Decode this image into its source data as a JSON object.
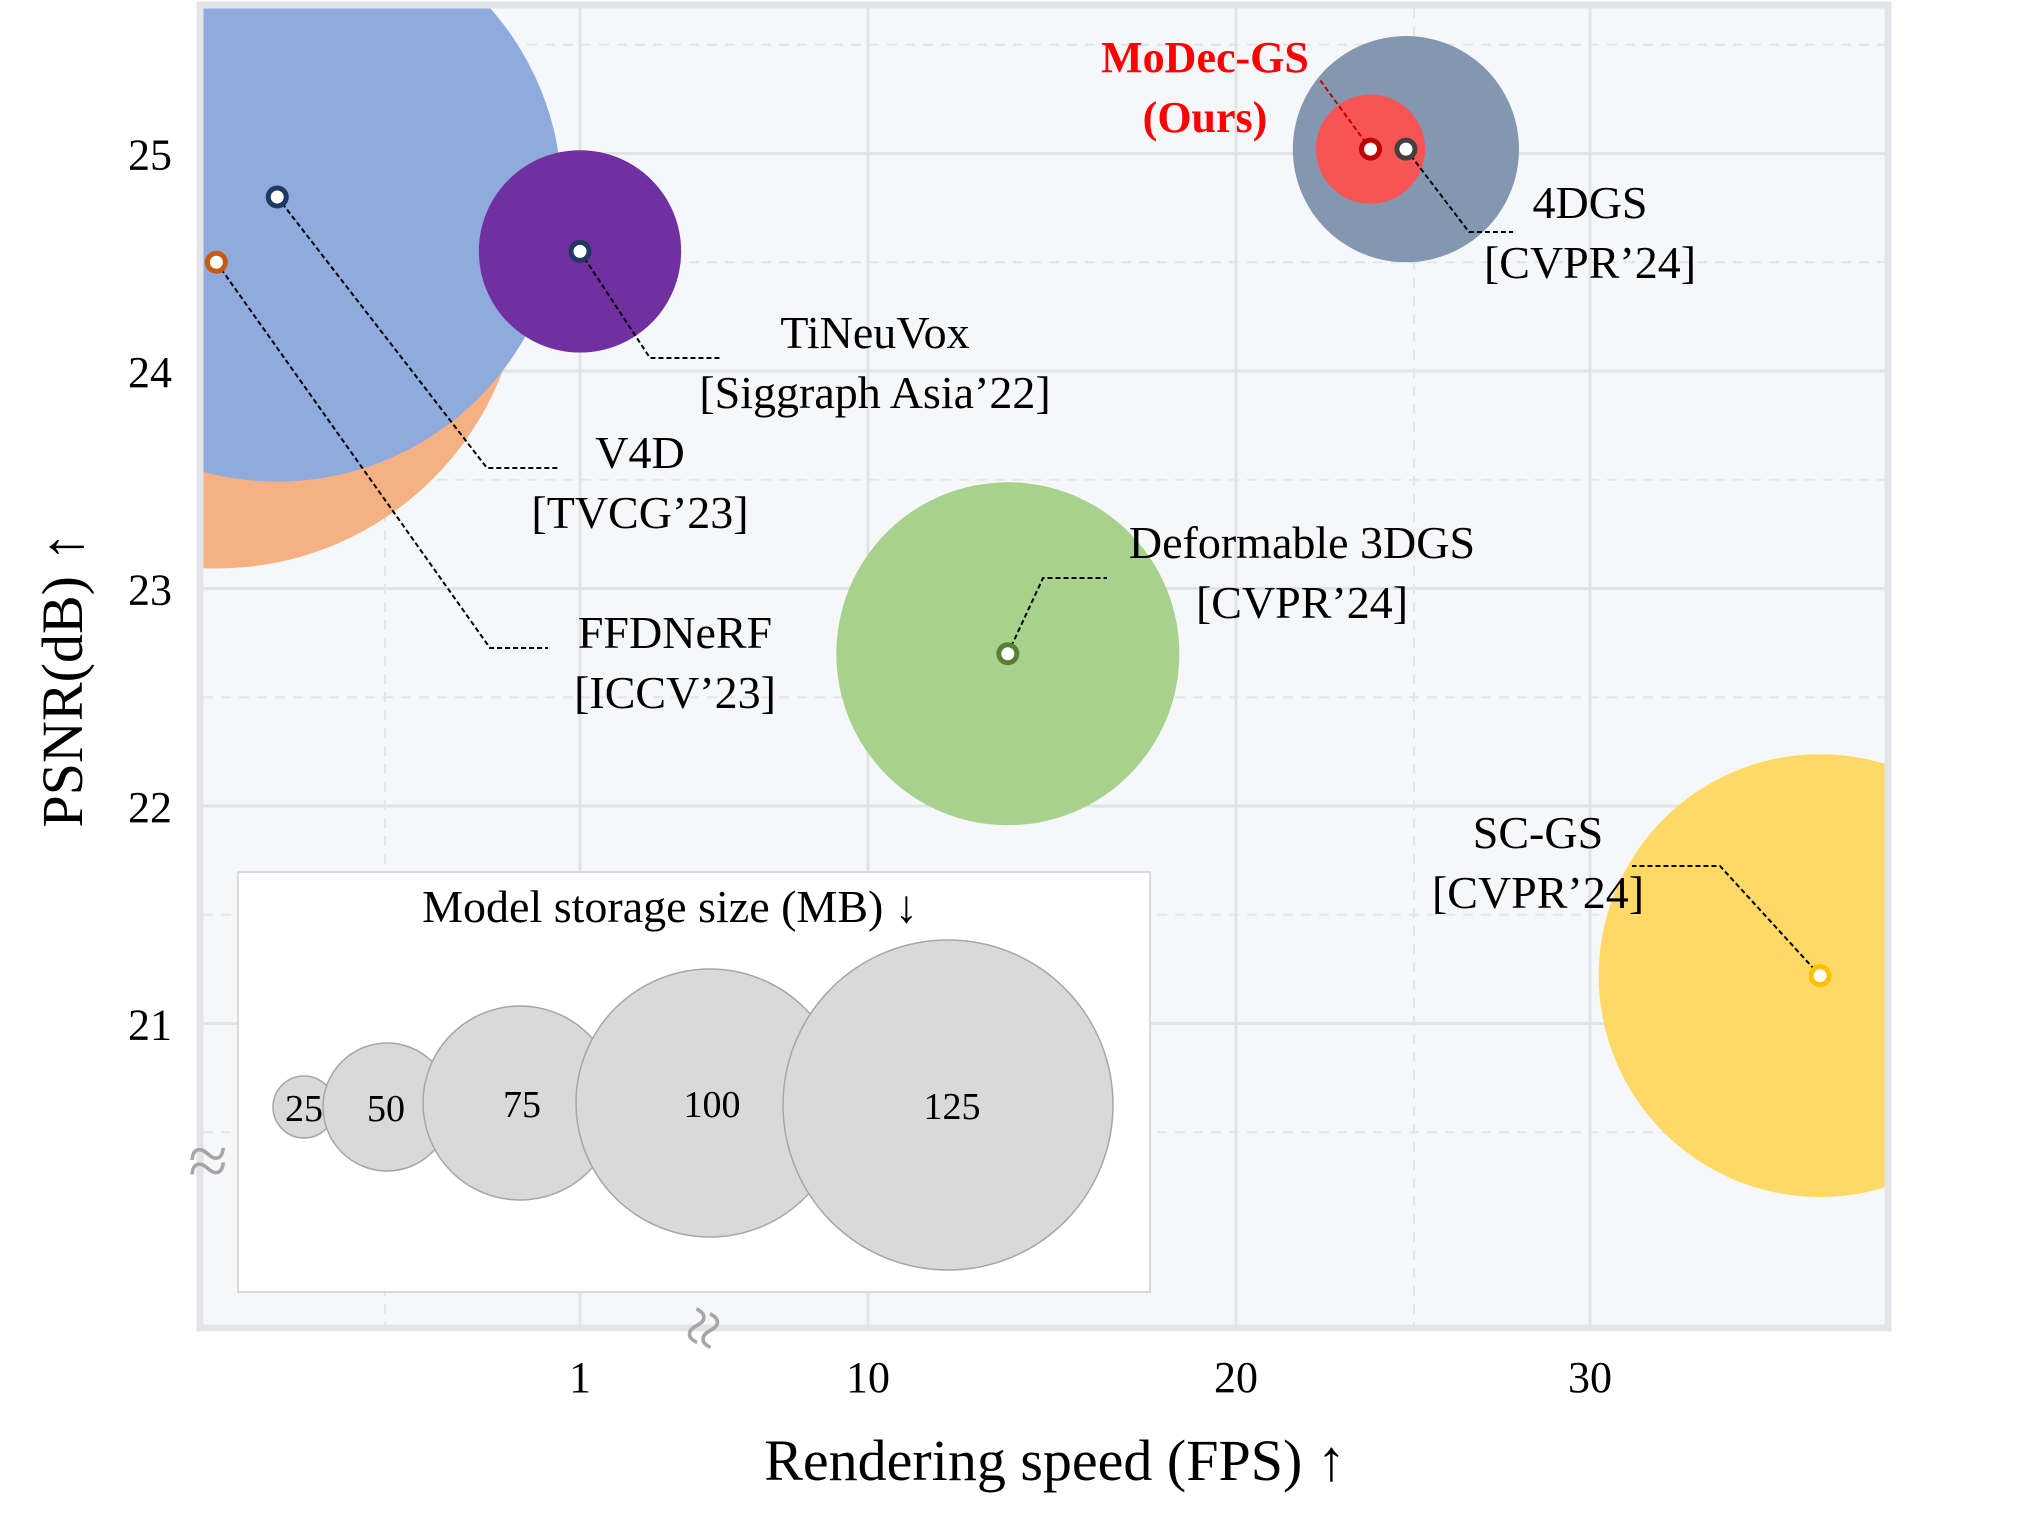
{
  "chart_data": {
    "type": "scatter",
    "variant": "bubble",
    "title": "",
    "xlabel": "Rendering speed (FPS) ↑",
    "ylabel": "PSNR(dB) ↑",
    "x_axis_note": "broken axis: sub-1 FPS region compressed, axis break between 1 and 10",
    "x_ticks": [
      "1",
      "10",
      "20",
      "30"
    ],
    "y_ticks": [
      "21",
      "22",
      "23",
      "24",
      "25"
    ],
    "ylim": [
      20.2,
      25.7
    ],
    "break_symbol": "≈",
    "grid": true,
    "size_legend": {
      "title": "Model storage size (MB) ↓",
      "placement": "bottom-left",
      "sizes": [
        25,
        50,
        75,
        100,
        125
      ],
      "labels": [
        "25",
        "50",
        "75",
        "100",
        "125"
      ]
    },
    "series": [
      {
        "name": "FFDNeRF",
        "venue": "[ICCV’23]",
        "fps": 0.05,
        "psnr": 24.5,
        "size_mb": 440,
        "color": "#f5b183",
        "marker_color": "#c55a11"
      },
      {
        "name": "V4D",
        "venue": "[TVCG’23]",
        "fps": 0.18,
        "psnr": 24.8,
        "size_mb": 380,
        "color": "#8faadc",
        "marker_color": "#1f3864"
      },
      {
        "name": "TiNeuVox",
        "venue": "[Siggraph Asia’22]",
        "fps": 1.0,
        "psnr": 24.55,
        "size_mb": 48,
        "color": "#7030a0",
        "marker_color": "#1f3864"
      },
      {
        "name": "Deformable 3DGS",
        "venue": "[CVPR’24]",
        "fps": 13.8,
        "psnr": 22.7,
        "size_mb": 138,
        "color": "#a9d18e",
        "marker_color": "#548235"
      },
      {
        "name": "4DGS",
        "venue": "[CVPR’24]",
        "fps": 24.8,
        "psnr": 25.02,
        "size_mb": 60,
        "color": "#8497b0",
        "marker_color": "#404040"
      },
      {
        "name": "MoDec-GS",
        "venue": "(Ours)",
        "fps": 23.8,
        "psnr": 25.02,
        "size_mb": 14,
        "color": "#ff5050",
        "marker_color": "#c00000",
        "highlight": true
      },
      {
        "name": "SC-GS",
        "venue": "[CVPR’24]",
        "fps": 36.5,
        "psnr": 21.22,
        "size_mb": 230,
        "color": "#ffd966",
        "marker_color": "#ffc000"
      }
    ]
  }
}
